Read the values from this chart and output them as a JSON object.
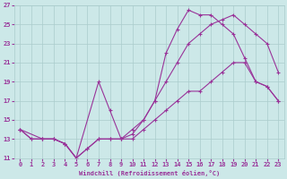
{
  "xlabel": "Windchill (Refroidissement éolien,°C)",
  "background_color": "#cce8e8",
  "grid_color": "#aacccc",
  "line_color": "#993399",
  "xlim": [
    -0.5,
    23.5
  ],
  "ylim": [
    11,
    27
  ],
  "xticks": [
    0,
    1,
    2,
    3,
    4,
    5,
    6,
    7,
    8,
    9,
    10,
    11,
    12,
    13,
    14,
    15,
    16,
    17,
    18,
    19,
    20,
    21,
    22,
    23
  ],
  "yticks": [
    11,
    13,
    15,
    17,
    19,
    21,
    23,
    25,
    27
  ],
  "curve1_x": [
    0,
    1,
    2,
    3,
    4,
    5,
    6,
    7,
    8,
    9,
    10,
    11,
    12,
    13,
    14,
    15,
    16,
    17,
    18,
    19,
    20,
    21,
    22,
    23
  ],
  "curve1_y": [
    14,
    13,
    13,
    13,
    12.5,
    11,
    12,
    13,
    13,
    13,
    13,
    14,
    15,
    16,
    17,
    18,
    18,
    19,
    20,
    21,
    21,
    19,
    18.5,
    17
  ],
  "curve2_x": [
    0,
    1,
    2,
    3,
    4,
    5,
    6,
    7,
    8,
    9,
    10,
    11,
    12,
    13,
    14,
    15,
    16,
    17,
    18,
    19,
    20,
    21,
    22,
    23
  ],
  "curve2_y": [
    14,
    13,
    13,
    13,
    12.5,
    11,
    12,
    13,
    13,
    13,
    13.5,
    15,
    17,
    19,
    21,
    23,
    24,
    25,
    25.5,
    26,
    25,
    24,
    23,
    20
  ],
  "curve3_x": [
    0,
    2,
    3,
    4,
    5,
    7,
    8,
    9,
    10,
    11,
    12,
    13,
    14,
    15,
    16,
    17,
    18,
    19,
    20,
    21,
    22,
    23
  ],
  "curve3_y": [
    14,
    13,
    13,
    12.5,
    11,
    19,
    16,
    13,
    14,
    15,
    17,
    22,
    24.5,
    26.5,
    26,
    26,
    25,
    24,
    21.5,
    19,
    18.5,
    17
  ]
}
